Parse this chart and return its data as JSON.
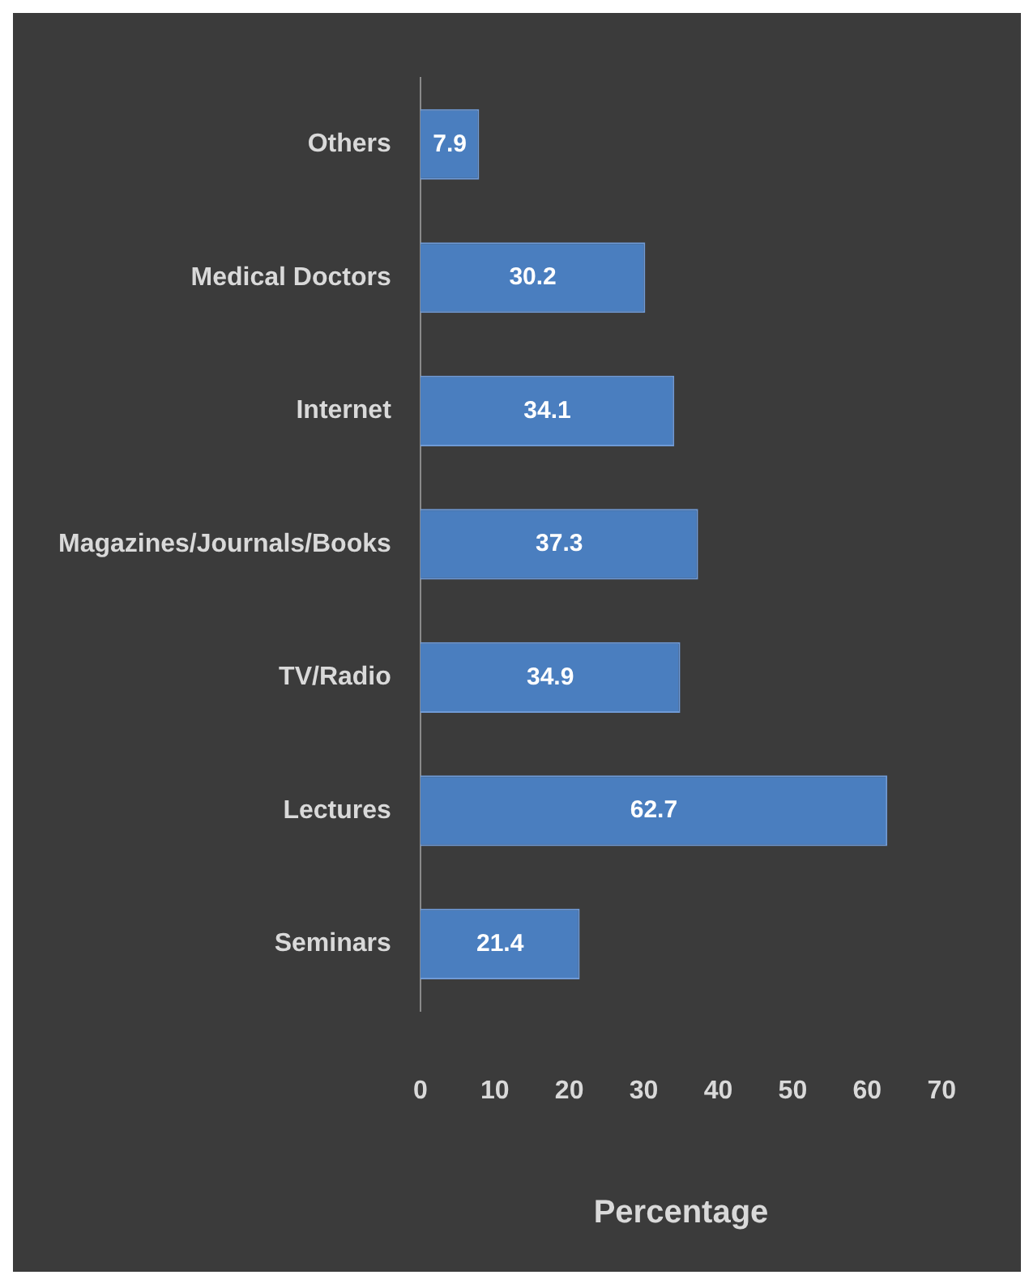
{
  "chart_data": {
    "type": "bar",
    "orientation": "horizontal",
    "xlabel": "Percentage",
    "categories": [
      "Others",
      "Medical Doctors",
      "Internet",
      "Magazines/Journals/Books",
      "TV/Radio",
      "Lectures",
      "Seminars"
    ],
    "values": [
      7.9,
      30.2,
      34.1,
      37.3,
      34.9,
      62.7,
      21.4
    ],
    "color": "#4a7ebf",
    "xlim": [
      0,
      70
    ],
    "xticks": [
      0,
      10,
      20,
      30,
      40,
      50,
      60,
      70
    ],
    "data_labels": true,
    "grid": false,
    "legend": false
  }
}
